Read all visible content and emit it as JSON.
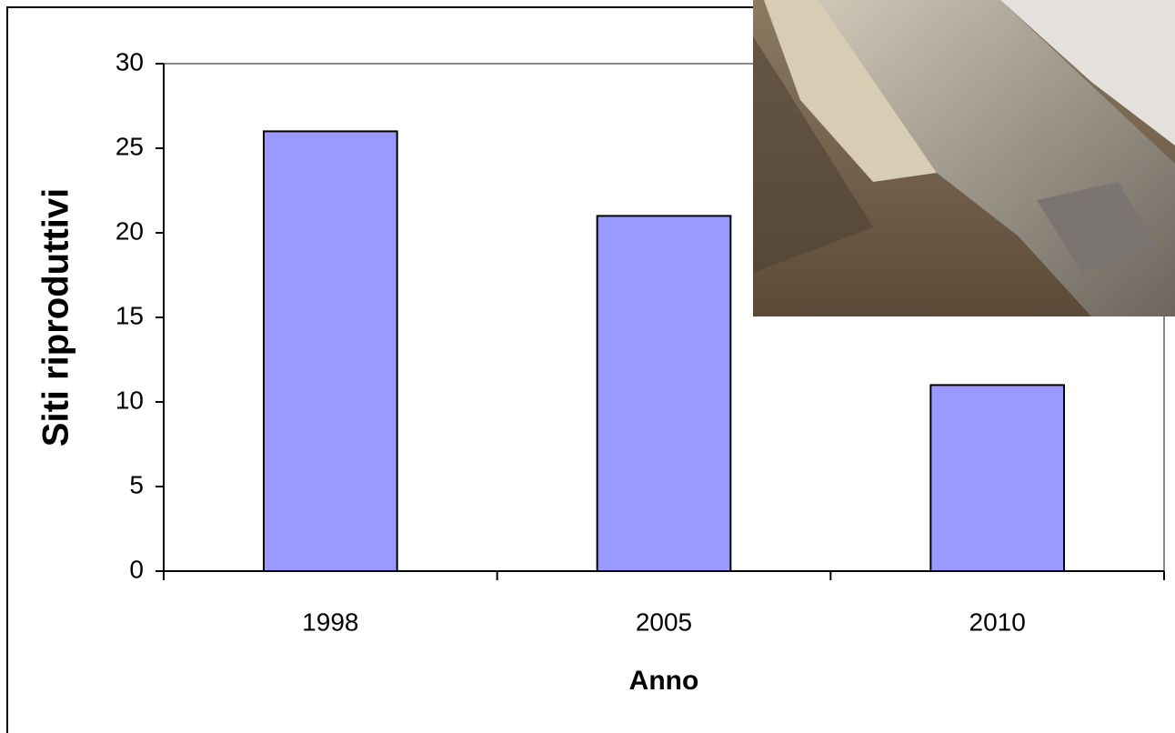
{
  "chart_data": {
    "type": "bar",
    "x_label": "Anno",
    "y_label": "Siti riproduttivi",
    "categories": [
      "1998",
      "2005",
      "2010"
    ],
    "values": [
      26,
      21,
      11
    ],
    "color": "#9999ff",
    "ylim": [
      0,
      30
    ],
    "yticks": [
      0,
      5,
      10,
      15,
      20,
      25,
      30
    ],
    "grid": false
  }
}
